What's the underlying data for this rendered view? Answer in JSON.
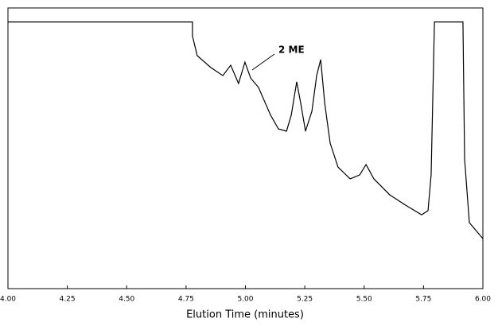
{
  "chart_data": {
    "type": "line",
    "x_label": "Elution Time (minutes)",
    "annotation": "2 ME",
    "x": [
      4.0,
      4.777,
      4.777,
      4.797,
      4.854,
      4.905,
      4.938,
      4.971,
      4.998,
      5.022,
      5.055,
      5.106,
      5.139,
      5.173,
      5.193,
      5.216,
      5.233,
      5.253,
      5.28,
      5.3,
      5.317,
      5.334,
      5.357,
      5.39,
      5.441,
      5.481,
      5.508,
      5.541,
      5.608,
      5.675,
      5.742,
      5.769,
      5.782,
      5.796,
      5.916,
      5.923,
      5.943,
      5.977,
      6.0
    ],
    "values": [
      95,
      95,
      90,
      83,
      78.8,
      75.9,
      79.6,
      73.1,
      80.7,
      75,
      71.7,
      61.8,
      56.9,
      56.1,
      61.8,
      73.7,
      66,
      56.1,
      63.2,
      75.9,
      81.6,
      66,
      51.8,
      43.3,
      39.1,
      40.5,
      44.2,
      39.1,
      33.4,
      29.7,
      26.3,
      27.8,
      40.5,
      95,
      95,
      46.2,
      23.5,
      20.1,
      17.8
    ],
    "color": "#000000",
    "xlim": [
      4,
      6
    ],
    "ylim": [
      0,
      100
    ],
    "xticks": [
      {
        "value": 4,
        "label": "4.00"
      },
      4.25,
      {
        "value": 4.5,
        "label": "4.50"
      },
      4.75,
      {
        "value": 5,
        "label": "5.00"
      },
      5.25,
      {
        "value": 5.5,
        "label": "5.50"
      },
      5.75,
      {
        "value": 6,
        "label": "6.00"
      }
    ]
  }
}
